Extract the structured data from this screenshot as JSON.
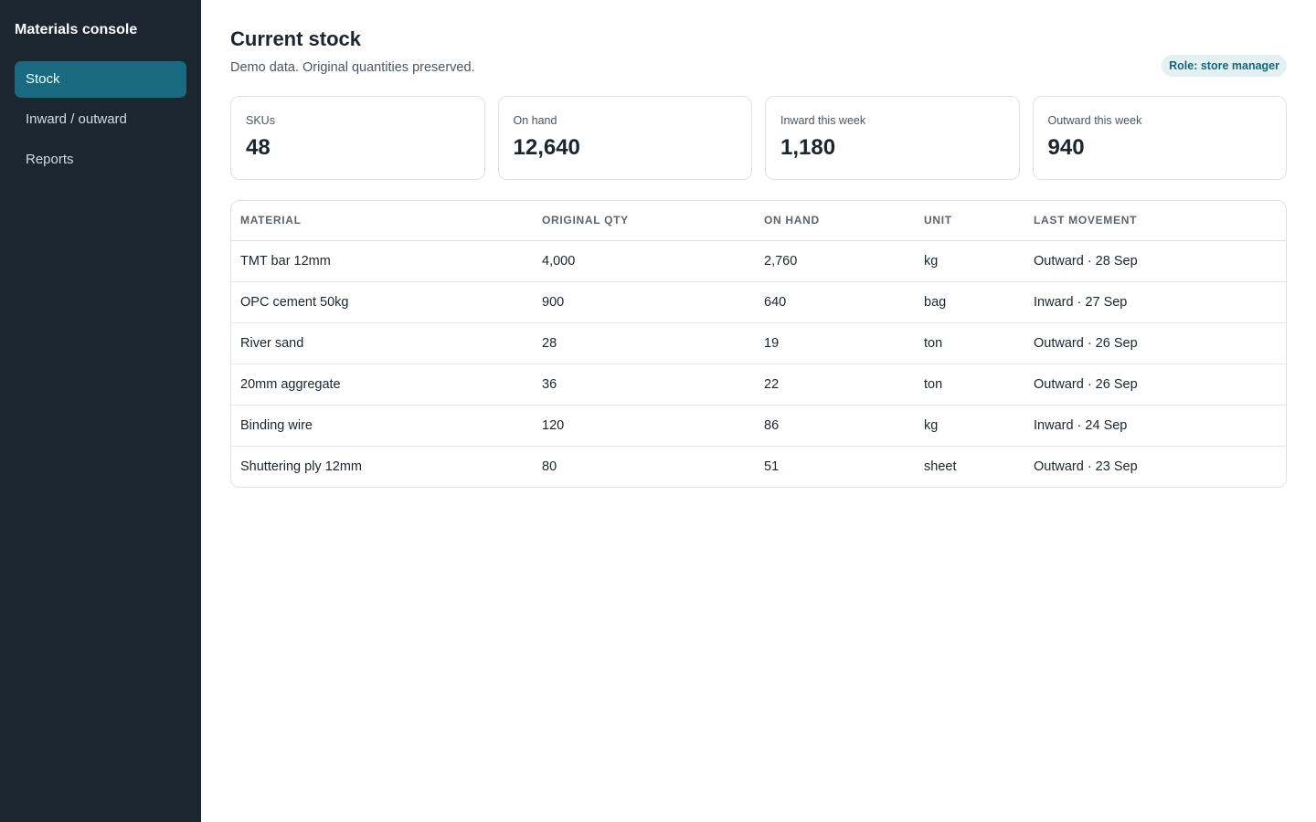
{
  "app": {
    "brand": "Materials console"
  },
  "sidebar": {
    "items": [
      {
        "label": "Stock",
        "active": true
      },
      {
        "label": "Inward / outward",
        "active": false
      },
      {
        "label": "Reports",
        "active": false
      }
    ]
  },
  "header": {
    "title": "Current stock",
    "subtitle": "Demo data. Original quantities preserved.",
    "role_badge": "Role: store manager"
  },
  "stats": [
    {
      "label": "SKUs",
      "value": "48"
    },
    {
      "label": "On hand",
      "value": "12,640"
    },
    {
      "label": "Inward this week",
      "value": "1,180"
    },
    {
      "label": "Outward this week",
      "value": "940"
    }
  ],
  "table": {
    "headers": [
      "MATERIAL",
      "ORIGINAL QTY",
      "ON HAND",
      "UNIT",
      "LAST MOVEMENT"
    ],
    "rows": [
      [
        "TMT bar 12mm",
        "4,000",
        "2,760",
        "kg",
        "Outward · 28 Sep"
      ],
      [
        "OPC cement 50kg",
        "900",
        "640",
        "bag",
        "Inward · 27 Sep"
      ],
      [
        "River sand",
        "28",
        "19",
        "ton",
        "Outward · 26 Sep"
      ],
      [
        "20mm aggregate",
        "36",
        "22",
        "ton",
        "Outward · 26 Sep"
      ],
      [
        "Binding wire",
        "120",
        "86",
        "kg",
        "Inward · 24 Sep"
      ],
      [
        "Shuttering ply 12mm",
        "80",
        "51",
        "sheet",
        "Outward · 23 Sep"
      ]
    ]
  },
  "colors": {
    "sidebar_bg": "#1b2631",
    "accent": "#196a80",
    "badge_bg": "#e3f1f3",
    "badge_text": "#17657a"
  }
}
